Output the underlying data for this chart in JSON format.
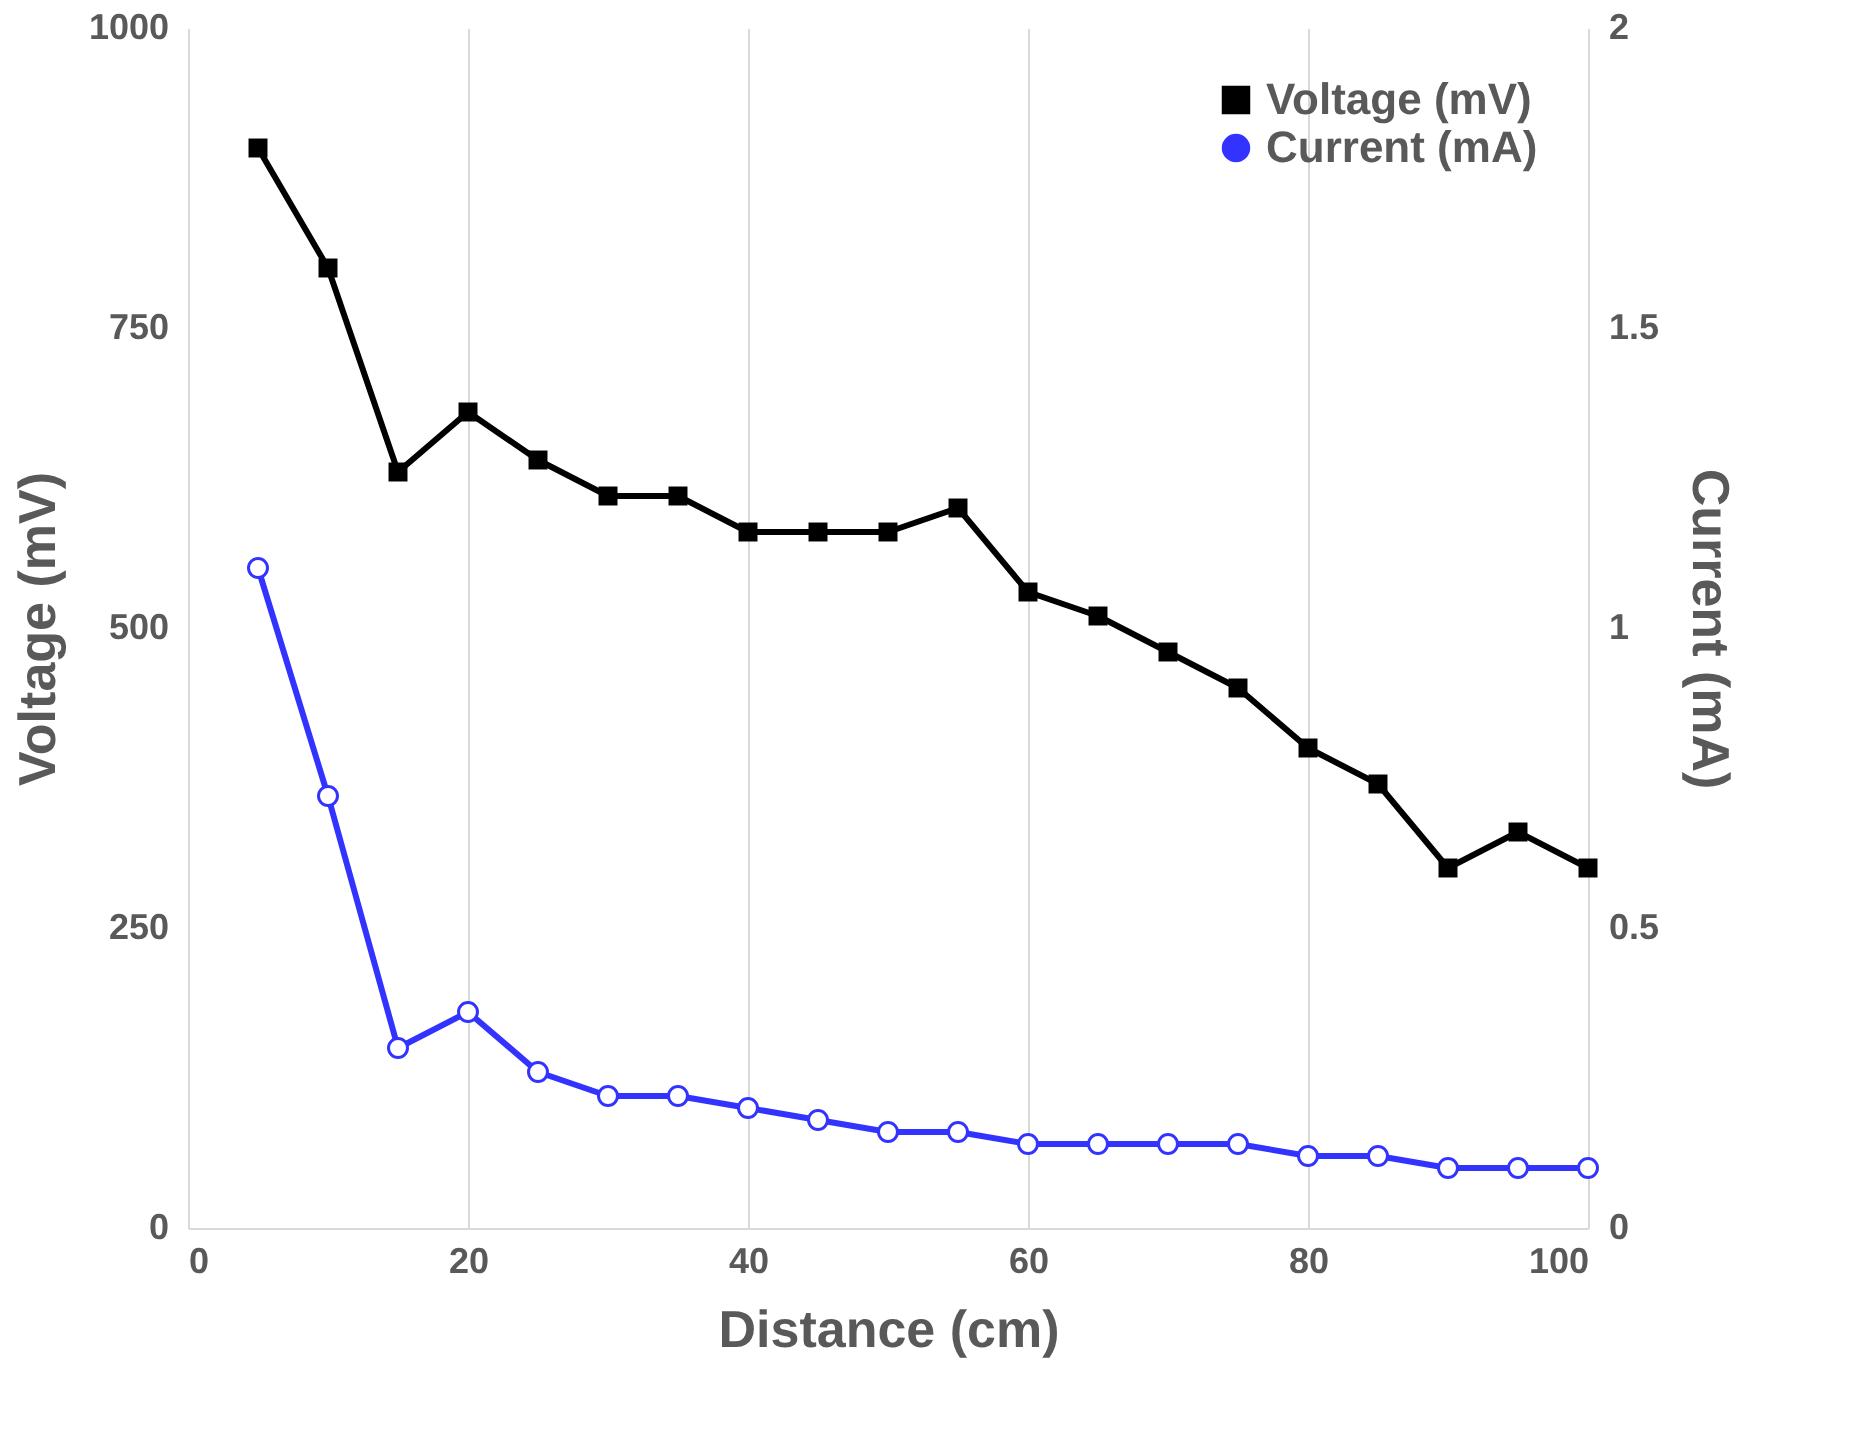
{
  "chart_data": {
    "type": "line",
    "xlabel": "Distance (cm)",
    "ylabel": "Voltage (mV)",
    "y2label": "Current (mA)",
    "x": [
      5,
      10,
      15,
      20,
      25,
      30,
      35,
      40,
      45,
      50,
      55,
      60,
      65,
      70,
      75,
      80,
      85,
      90,
      95,
      100
    ],
    "xlim": [
      0,
      100
    ],
    "xticks": [
      0,
      20,
      40,
      60,
      80,
      100
    ],
    "ylim": [
      0,
      1000
    ],
    "yticks": [
      0,
      250,
      500,
      750,
      1000
    ],
    "y2lim": [
      0,
      2
    ],
    "y2ticks": [
      0,
      0.5,
      1,
      1.5,
      2
    ],
    "grid": "x",
    "legend": "top right",
    "line_style": "solid",
    "series": [
      {
        "name": "Voltage (mV)",
        "color": "#000000",
        "marker": "square",
        "values": [
          900,
          800,
          630,
          680,
          640,
          610,
          610,
          580,
          580,
          580,
          600,
          530,
          510,
          480,
          450,
          400,
          370,
          300,
          330,
          300
        ]
      },
      {
        "name": "Current (mA)",
        "color": "#3333ff",
        "marker": "circle",
        "axis": "y2",
        "values": [
          1.1,
          0.72,
          0.3,
          0.36,
          0.26,
          0.22,
          0.22,
          0.2,
          0.18,
          0.16,
          0.16,
          0.14,
          0.14,
          0.14,
          0.14,
          0.12,
          0.12,
          0.1,
          0.1,
          0.1
        ]
      }
    ]
  }
}
